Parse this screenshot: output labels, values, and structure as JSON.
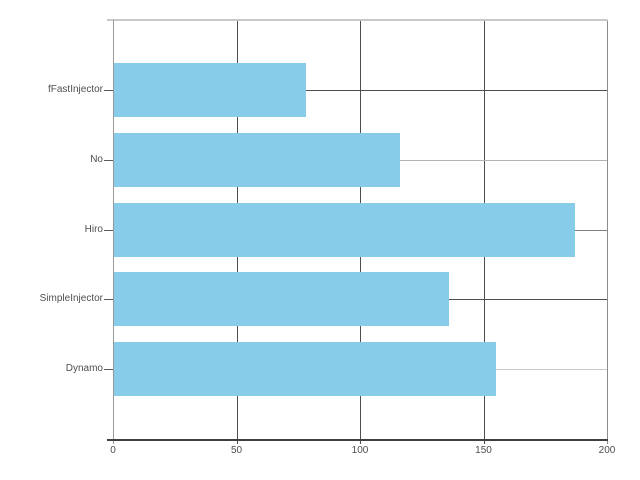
{
  "chart_data": {
    "type": "bar",
    "orientation": "horizontal",
    "title": "",
    "xlabel": "",
    "ylabel": "",
    "categories": [
      "fFastInjector",
      "No",
      "Hiro",
      "SimpleInjector",
      "Dynamo"
    ],
    "values": [
      78,
      116,
      187,
      136,
      155
    ],
    "x_ticks": [
      "0",
      "50",
      "100",
      "150",
      "200"
    ],
    "xlim": [
      0,
      200
    ],
    "grid": true,
    "legend": false,
    "bar_color": "#87CDE9"
  },
  "colors": {
    "background": "#ffffff",
    "bar": "#87CDE9",
    "border_top": "#c9c9c9",
    "border_right": "#8c8c8c",
    "axis_left": "#9a9a9a",
    "axis_bottom": "#3f3f3f",
    "grid_vertical": "#4d4d4d",
    "grid_horizontal": [
      "#4d4d4d",
      "#b3b3b3",
      "#808080",
      "#4d4d4d",
      "#c9c9c9"
    ],
    "tick_mark": "#5a5a5a",
    "text": "#4f4f4f"
  }
}
